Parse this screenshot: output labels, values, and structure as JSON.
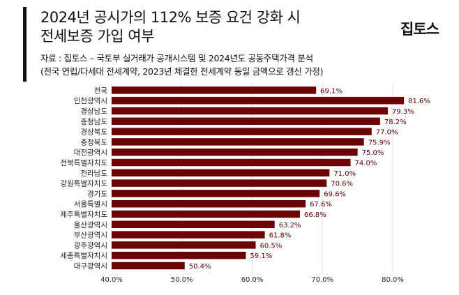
{
  "header": {
    "title_line1": "2024년 공시가의 112% 보증 요건 강화 시",
    "title_line2": "전세보증 가입 여부",
    "logo": "집토스",
    "source_line1": "자료 : 집토스 – 국토부 실거래가 공개시스템 및 2024년도 공동주택가격 분석",
    "source_line2": "(전국 연립/다세대 전세계약, 2023년 체결한 전세계약 동일 금액으로 갱신 가정)"
  },
  "chart_data": {
    "type": "bar",
    "orientation": "horizontal",
    "categories": [
      "전국",
      "인천광역시",
      "경상남도",
      "충청남도",
      "경상북도",
      "충청북도",
      "대전광역시",
      "전북특별자치도",
      "전라남도",
      "강원특별자치도",
      "경기도",
      "서울특별시",
      "제주특별자치도",
      "울산광역시",
      "부산광역시",
      "광주광역시",
      "세종특별자치시",
      "대구광역시"
    ],
    "values": [
      69.1,
      81.6,
      79.3,
      78.2,
      77.0,
      75.9,
      75.0,
      74.0,
      71.0,
      70.6,
      69.6,
      67.6,
      66.8,
      63.2,
      61.8,
      60.5,
      59.1,
      50.4
    ],
    "value_labels": [
      "69.1%",
      "81.6%",
      "79.3%",
      "78.2%",
      "77.0%",
      "75.9%",
      "75.0%",
      "74.0%",
      "71.0%",
      "70.6%",
      "69.6%",
      "67.6%",
      "66.8%",
      "63.2%",
      "61.8%",
      "60.5%",
      "59.1%",
      "50.4%"
    ],
    "xlim": [
      40,
      80
    ],
    "x_ticks": [
      "40.0%",
      "50.0%",
      "60.0%",
      "70.0%",
      "80.0%"
    ],
    "grid": true,
    "bar_color": "#6b0505",
    "label_color": "#5a0000"
  }
}
